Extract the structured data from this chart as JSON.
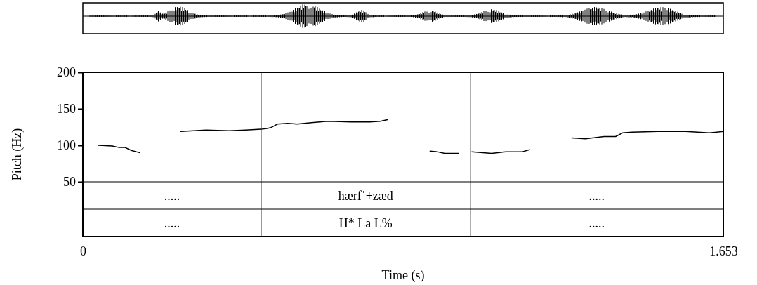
{
  "chart_data": {
    "type": "line",
    "xlabel": "Time (s)",
    "ylabel": "Pitch (Hz)",
    "xlim": [
      0,
      1.653
    ],
    "xticks": [
      0,
      1.653
    ],
    "ylim": [
      -25,
      200
    ],
    "yticks": [
      50,
      100,
      150,
      200
    ],
    "grid": false,
    "marker": "none",
    "line_style": "solid",
    "series": [
      {
        "color": "#000000",
        "x": [
          0.04,
          0.076,
          0.094,
          0.109,
          0.125,
          0.146,
          0.2,
          0.253,
          0.318,
          0.378,
          0.42,
          0.46,
          0.475,
          0.484,
          0.502,
          0.529,
          0.553,
          0.59,
          0.632,
          0.693,
          0.741,
          0.768,
          0.786,
          0.84,
          0.896,
          0.916,
          0.934,
          0.97,
          0.99,
          1.004,
          1.055,
          1.091,
          1.133,
          1.153,
          1.2,
          1.262,
          1.297,
          1.345,
          1.375,
          1.393,
          1.418,
          1.484,
          1.556,
          1.617,
          1.653
        ],
        "values": [
          100,
          99,
          97,
          97,
          93,
          90,
          null,
          119,
          121,
          120,
          121,
          122,
          123,
          124,
          129,
          130,
          129,
          131,
          133,
          132,
          132,
          133,
          135,
          null,
          92,
          91,
          89,
          89,
          null,
          91,
          89,
          91,
          91,
          94,
          null,
          110,
          109,
          112,
          112,
          117,
          118,
          119,
          119,
          117,
          119
        ]
      }
    ],
    "ref_lines": [
      {
        "axis": "x",
        "value": 0.46,
        "color": "#000000"
      },
      {
        "axis": "x",
        "value": 1.0,
        "color": "#000000"
      },
      {
        "axis": "y",
        "value": 50,
        "color": "#000000"
      },
      {
        "axis": "y",
        "value": 12.5,
        "color": "#000000"
      }
    ],
    "annotations": [
      ".....",
      "hærfˈ+zæd",
      ".....",
      ".....",
      "H* La L%",
      "....."
    ]
  }
}
